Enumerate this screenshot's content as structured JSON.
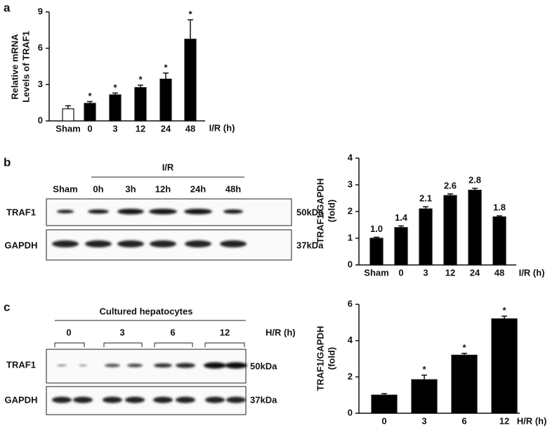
{
  "chart_data": [
    {
      "type": "bar",
      "panel": "a",
      "ylabel": [
        "Relative mRNA",
        "Levels of TRAF1"
      ],
      "xlabel": "I/R (h)",
      "categories": [
        "Sham",
        "0",
        "3",
        "12",
        "24",
        "48"
      ],
      "values": [
        1.0,
        1.45,
        2.15,
        2.75,
        3.45,
        6.75
      ],
      "errors": [
        0.25,
        0.15,
        0.15,
        0.2,
        0.5,
        1.6
      ],
      "annotations": [
        null,
        "*",
        "*",
        "*",
        "*",
        "*"
      ],
      "colors": [
        "#ffffff",
        "#000000",
        "#000000",
        "#000000",
        "#000000",
        "#000000"
      ],
      "ylim": [
        0,
        9
      ],
      "yticks": [
        0,
        3,
        6,
        9
      ]
    },
    {
      "type": "bar",
      "ylabel": [
        "TRAF1/GAPDH",
        "(fold)"
      ],
      "xlabel": "I/R (h)",
      "categories": [
        "Sham",
        "0",
        "3",
        "12",
        "24",
        "48"
      ],
      "values": [
        1.0,
        1.4,
        2.1,
        2.6,
        2.8,
        1.8
      ],
      "value_labels": [
        "1.0",
        "1.4",
        "2.1",
        "2.6",
        "2.8",
        "1.8"
      ],
      "errors": [
        0.04,
        0.06,
        0.08,
        0.06,
        0.07,
        0.04
      ],
      "colors": [
        "#000000",
        "#000000",
        "#000000",
        "#000000",
        "#000000",
        "#000000"
      ],
      "ylim": [
        0,
        4
      ],
      "yticks": [
        0,
        1,
        2,
        3,
        4
      ]
    },
    {
      "type": "bar",
      "ylabel": [
        "TRAF1/GAPDH",
        "(fold)"
      ],
      "xlabel": "H/R (h)",
      "categories": [
        "0",
        "3",
        "6",
        "12"
      ],
      "values": [
        1.0,
        1.85,
        3.2,
        5.2
      ],
      "errors": [
        0.08,
        0.25,
        0.1,
        0.15
      ],
      "annotations": [
        null,
        "*",
        "*",
        "*"
      ],
      "colors": [
        "#000000",
        "#000000",
        "#000000",
        "#000000"
      ],
      "ylim": [
        0,
        6
      ],
      "yticks": [
        0,
        2,
        4,
        6
      ]
    }
  ],
  "blots": [
    {
      "panel": "b",
      "group_label": "I/R",
      "lanes": [
        "Sham",
        "0h",
        "3h",
        "12h",
        "24h",
        "48h"
      ],
      "rows": [
        "TRAF1",
        "GAPDH"
      ],
      "sizes": [
        "50kDa",
        "37kDa"
      ]
    },
    {
      "panel": "c",
      "group_label": "Cultured hepatocytes",
      "lanes": [
        "0",
        "3",
        "6",
        "12"
      ],
      "lane_axis": "H/R (h)",
      "rows": [
        "TRAF1",
        "GAPDH"
      ],
      "sizes": [
        "50kDa",
        "37kDa"
      ]
    }
  ]
}
